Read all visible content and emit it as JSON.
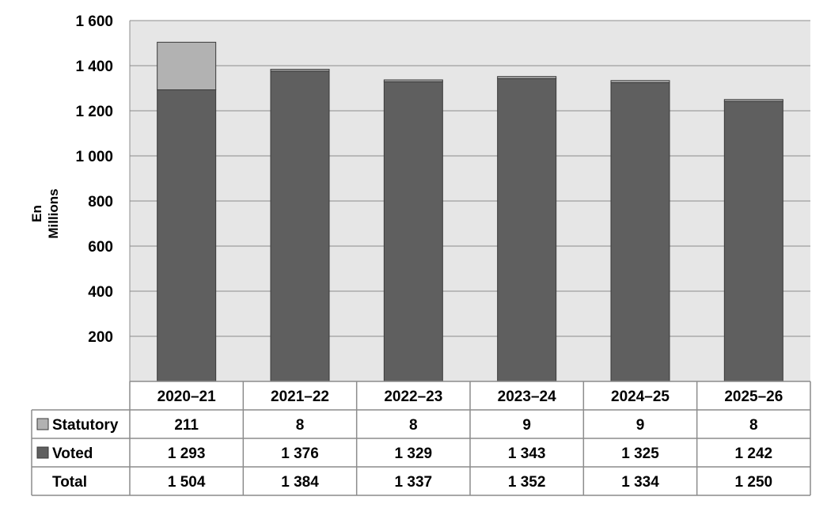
{
  "chart_data": {
    "type": "bar",
    "stacked": true,
    "ylabel_lines": [
      "En",
      "Millions"
    ],
    "ylim": [
      0,
      1600
    ],
    "yticks": [
      {
        "value": 200,
        "label": "200"
      },
      {
        "value": 400,
        "label": "400"
      },
      {
        "value": 600,
        "label": "600"
      },
      {
        "value": 800,
        "label": "800"
      },
      {
        "value": 1000,
        "label": "1 000"
      },
      {
        "value": 1200,
        "label": "1 200"
      },
      {
        "value": 1400,
        "label": "1 400"
      },
      {
        "value": 1600,
        "label": "1 600"
      }
    ],
    "grid": true,
    "categories": [
      "2020–21",
      "2021–22",
      "2022–23",
      "2023–24",
      "2024–25",
      "2025–26"
    ],
    "series": [
      {
        "name": "Voted",
        "color": "#5f5f5f",
        "values": [
          1293,
          1376,
          1329,
          1343,
          1325,
          1242
        ],
        "labels": [
          "1 293",
          "1 376",
          "1 329",
          "1 343",
          "1 325",
          "1 242"
        ]
      },
      {
        "name": "Statutory",
        "color": "#b2b2b2",
        "values": [
          211,
          8,
          8,
          9,
          9,
          8
        ],
        "labels": [
          "211",
          "8",
          "8",
          "9",
          "9",
          "8"
        ]
      }
    ],
    "table": {
      "rows": [
        {
          "name": "Statutory",
          "swatch": "#b2b2b2",
          "values": [
            "211",
            "8",
            "8",
            "9",
            "9",
            "8"
          ]
        },
        {
          "name": "Voted",
          "swatch": "#5f5f5f",
          "values": [
            "1 293",
            "1 376",
            "1 329",
            "1 343",
            "1 325",
            "1 242"
          ]
        },
        {
          "name": "Total",
          "swatch": null,
          "values": [
            "1 504",
            "1 384",
            "1 337",
            "1 352",
            "1 334",
            "1 250"
          ]
        }
      ]
    },
    "colors": {
      "plot_bg": "#e6e6e6",
      "grid": "#8c8c8c",
      "bar_edge": "#3a3a3a",
      "table_border": "#8c8c8c"
    }
  }
}
